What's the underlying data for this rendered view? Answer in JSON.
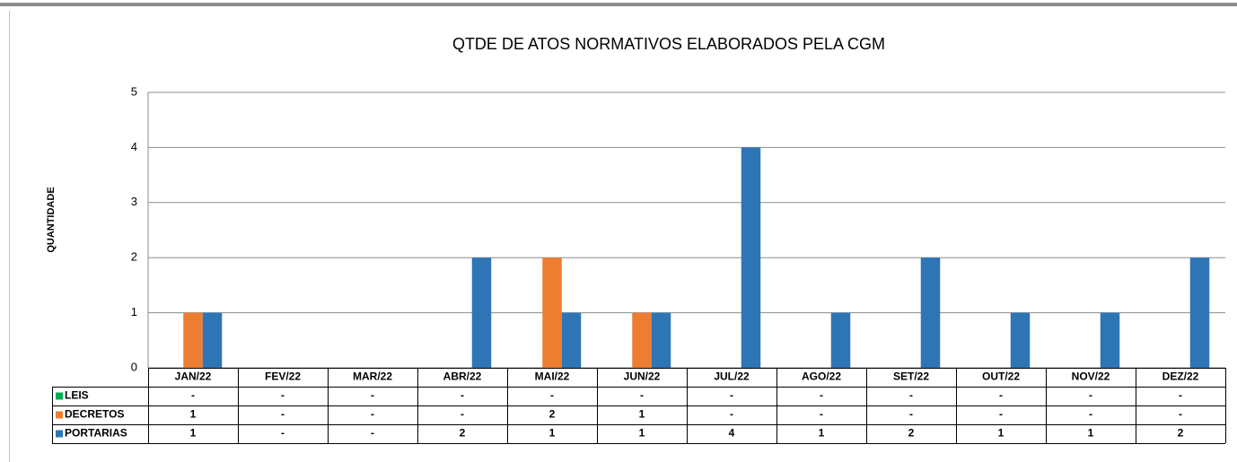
{
  "chart_data": {
    "type": "bar",
    "title": "QTDE DE ATOS NORMATIVOS ELABORADOS PELA CGM",
    "y_label": "QUANTIDADE",
    "categories": [
      "JAN/22",
      "FEV/22",
      "MAR/22",
      "ABR/22",
      "MAI/22",
      "JUN/22",
      "JUL/22",
      "AGO/22",
      "SET/22",
      "OUT/22",
      "NOV/22",
      "DEZ/22"
    ],
    "series": [
      {
        "name": "LEIS",
        "color": "#00b050",
        "values": [
          0,
          0,
          0,
          0,
          0,
          0,
          0,
          0,
          0,
          0,
          0,
          0
        ],
        "value_labels": [
          "-",
          "-",
          "-",
          "-",
          "-",
          "-",
          "-",
          "-",
          "-",
          "-",
          "-",
          "-"
        ]
      },
      {
        "name": "DECRETOS",
        "color": "#ed7d31",
        "values": [
          1,
          0,
          0,
          0,
          2,
          1,
          0,
          0,
          0,
          0,
          0,
          0
        ],
        "value_labels": [
          "1",
          "-",
          "-",
          "-",
          "2",
          "1",
          "-",
          "-",
          "-",
          "-",
          "-",
          "-"
        ]
      },
      {
        "name": "PORTARIAS",
        "color": "#2e75b6",
        "values": [
          1,
          0,
          0,
          2,
          1,
          1,
          4,
          1,
          2,
          1,
          1,
          2
        ],
        "value_labels": [
          "1",
          "-",
          "-",
          "2",
          "1",
          "1",
          "4",
          "1",
          "2",
          "1",
          "1",
          "2"
        ]
      }
    ],
    "ylim": [
      0,
      5
    ],
    "yticks": [
      0,
      1,
      2,
      3,
      4,
      5
    ],
    "grid": true,
    "data_table": true
  }
}
